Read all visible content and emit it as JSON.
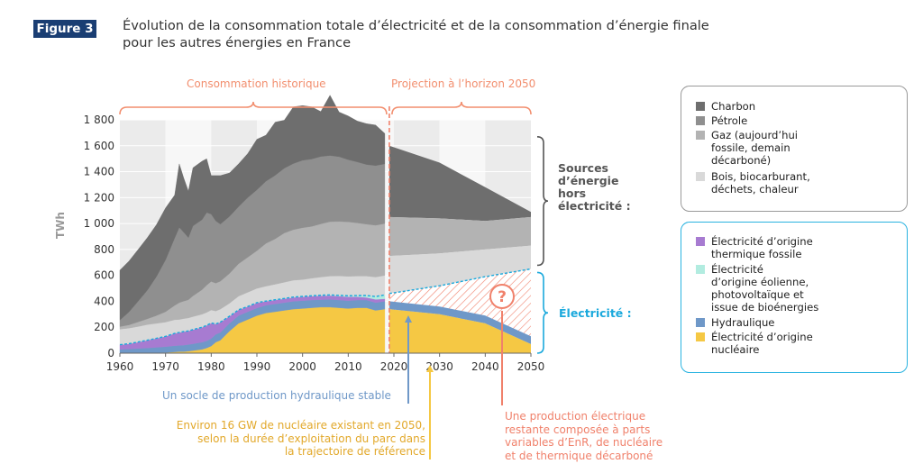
{
  "figure": {
    "badge": "Figure 3",
    "title_line1": "Évolution de la consommation totale d’électricité et de la consommation d’énergie finale",
    "title_line2": "pour les autres énergies en France"
  },
  "colors": {
    "charbon": "#6e6e6e",
    "petrole": "#8f8f8f",
    "gaz": "#b3b3b3",
    "bois": "#d9d9d9",
    "thermique": "#a77bd1",
    "enr": "#b2ece0",
    "hydraulique": "#6f98c8",
    "nucleaire": "#f5c844",
    "projection_hatch": "#f0816b",
    "electricity_accent": "#1ba9dc",
    "period_accent": "#f28e6e",
    "badge": "#1a3e73"
  },
  "periods": {
    "historic": "Consommation historique",
    "projection": "Projection à l’horizon 2050"
  },
  "side_labels": {
    "fossil": [
      "Sources",
      "d’énergie",
      "hors",
      "électricité :"
    ],
    "electricity": "Électricité :"
  },
  "legend_other": [
    {
      "key": "charbon",
      "lines": [
        "Charbon"
      ]
    },
    {
      "key": "petrole",
      "lines": [
        "Pétrole"
      ]
    },
    {
      "key": "gaz",
      "lines": [
        "Gaz (aujourd’hui",
        "fossile, demain",
        "décarboné)"
      ]
    },
    {
      "key": "bois",
      "lines": [
        "Bois, biocarburant,",
        "déchets, chaleur"
      ]
    }
  ],
  "legend_elec": [
    {
      "key": "thermique",
      "lines": [
        "Électricité d’origine",
        "thermique fossile"
      ]
    },
    {
      "key": "enr",
      "lines": [
        "Électricité",
        "d’origine éolienne,",
        "photovoltaïque et",
        "issue de bioénergies"
      ]
    },
    {
      "key": "hydraulique",
      "lines": [
        "Hydraulique"
      ]
    },
    {
      "key": "nucleaire",
      "lines": [
        "Électricité d’origine",
        "nucléaire"
      ]
    }
  ],
  "annotations": {
    "hydro": "Un socle de production hydraulique stable",
    "nuclear": [
      "Environ 16 GW de nucléaire existant en 2050,",
      "selon la durée d’exploitation du parc dans",
      "la trajectoire de référence"
    ],
    "electricity": [
      "Une production électrique",
      "restante composée à parts",
      "variables d’EnR, de nucléaire",
      "et de thermique décarboné"
    ],
    "question_mark": "?"
  },
  "chart_data": {
    "type": "area",
    "ylabel": "TWh",
    "ylim": [
      0,
      1800
    ],
    "xlim": [
      1960,
      2050
    ],
    "y_ticks": [
      "0",
      "200",
      "400",
      "600",
      "800",
      "1 000",
      "1 200",
      "1 400",
      "1 600",
      "1 800"
    ],
    "x_ticks": [
      "1960",
      "1970",
      "1980",
      "1990",
      "2000",
      "2010",
      "2020",
      "2030",
      "2040",
      "2050"
    ],
    "projection_start": 2019,
    "historic_stack": {
      "years": [
        1960,
        1962,
        1964,
        1966,
        1968,
        1970,
        1972,
        1973,
        1974,
        1975,
        1976,
        1978,
        1979,
        1980,
        1981,
        1982,
        1984,
        1986,
        1988,
        1990,
        1992,
        1994,
        1996,
        1998,
        2000,
        2002,
        2004,
        2006,
        2008,
        2010,
        2012,
        2014,
        2016,
        2018
      ],
      "series": [
        {
          "name": "Électricité d’origine nucléaire",
          "key": "nucleaire",
          "values": [
            0,
            0,
            1,
            2,
            3,
            5,
            10,
            12,
            12,
            15,
            20,
            30,
            40,
            55,
            85,
            100,
            170,
            230,
            260,
            290,
            310,
            320,
            330,
            340,
            345,
            350,
            355,
            355,
            350,
            345,
            350,
            350,
            330,
            340
          ]
        },
        {
          "name": "Hydraulique",
          "key": "hydraulique",
          "values": [
            30,
            33,
            35,
            38,
            42,
            45,
            48,
            48,
            50,
            52,
            52,
            55,
            55,
            58,
            60,
            60,
            60,
            60,
            60,
            58,
            60,
            60,
            60,
            60,
            60,
            60,
            58,
            60,
            60,
            60,
            60,
            60,
            60,
            60
          ]
        },
        {
          "name": "Électricité d’origine thermique fossile",
          "key": "thermique",
          "values": [
            35,
            40,
            50,
            60,
            70,
            80,
            95,
            100,
            105,
            105,
            110,
            115,
            120,
            120,
            80,
            80,
            55,
            45,
            40,
            40,
            30,
            30,
            30,
            30,
            30,
            30,
            30,
            30,
            30,
            30,
            25,
            20,
            25,
            20
          ]
        },
        {
          "name": "Électricité d’origine éolienne, photovoltaïque et issue de bioénergies",
          "key": "enr",
          "values": [
            0,
            0,
            0,
            0,
            0,
            0,
            0,
            0,
            0,
            0,
            0,
            0,
            0,
            0,
            0,
            0,
            0,
            0,
            0,
            2,
            2,
            2,
            2,
            3,
            3,
            3,
            4,
            5,
            6,
            8,
            10,
            15,
            22,
            30
          ]
        },
        {
          "name": "Bois, biocarburant, déchets, chaleur",
          "key": "bois",
          "values": [
            120,
            120,
            120,
            120,
            115,
            110,
            105,
            100,
            100,
            100,
            100,
            100,
            100,
            100,
            100,
            100,
            100,
            105,
            110,
            110,
            115,
            120,
            125,
            130,
            130,
            135,
            140,
            145,
            150,
            150,
            150,
            150,
            150,
            150
          ]
        },
        {
          "name": "Gaz",
          "key": "gaz",
          "values": [
            20,
            25,
            35,
            45,
            60,
            80,
            110,
            130,
            135,
            140,
            160,
            190,
            210,
            220,
            215,
            215,
            230,
            250,
            270,
            290,
            330,
            350,
            380,
            390,
            400,
            400,
            410,
            420,
            420,
            420,
            410,
            400,
            400,
            400
          ]
        },
        {
          "name": "Pétrole",
          "key": "petrole",
          "values": [
            50,
            100,
            160,
            220,
            300,
            400,
            520,
            580,
            530,
            480,
            540,
            540,
            560,
            520,
            480,
            440,
            440,
            440,
            460,
            470,
            480,
            490,
            500,
            510,
            520,
            520,
            520,
            510,
            500,
            480,
            470,
            460,
            460,
            460
          ]
        },
        {
          "name": "Charbon",
          "key": "charbon",
          "values": [
            385,
            392,
            399,
            405,
            400,
            400,
            332,
            490,
            418,
            358,
            448,
            451,
            415,
            297,
            350,
            375,
            335,
            330,
            340,
            390,
            355,
            410,
            370,
            437,
            422,
            402,
            347,
            465,
            344,
            337,
            315,
            315,
            313,
            235
          ]
        }
      ],
      "electricity_total": [
        65,
        73,
        86,
        100,
        115,
        130,
        153,
        160,
        167,
        172,
        182,
        200,
        215,
        233,
        225,
        240,
        285,
        335,
        360,
        390,
        402,
        412,
        422,
        433,
        438,
        443,
        447,
        450,
        446,
        443,
        445,
        445,
        437,
        450
      ]
    },
    "projection": {
      "years": [
        2019,
        2030,
        2040,
        2050
      ],
      "total": [
        1600,
        1470,
        1280,
        1090
      ],
      "fossil_top_boundary": [
        1050,
        1040,
        1020,
        1050
      ],
      "gaz_boundary": [
        750,
        770,
        800,
        830
      ],
      "electricity_total": [
        460,
        520,
        590,
        650
      ],
      "nuclear_existing": [
        340,
        300,
        230,
        70
      ],
      "hydraulique": [
        60,
        60,
        60,
        60
      ]
    }
  }
}
